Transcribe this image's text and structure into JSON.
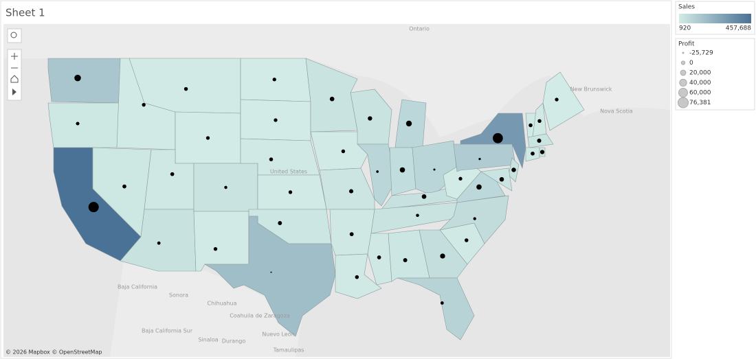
{
  "header": {
    "title": "Sheet 1"
  },
  "chart_data": {
    "type": "choropleth",
    "states": [
      {
        "sales": 138641,
        "profit": 33403
      },
      {
        "sales": 17431,
        "profit": -1190
      },
      {
        "sales": 457688,
        "profit": 76381
      },
      {
        "sales": 4382,
        "profit": 827
      },
      {
        "sales": 16729,
        "profit": 3317
      },
      {
        "sales": 5589,
        "profit": 1834
      },
      {
        "sales": 1603,
        "profit": 100
      },
      {
        "sales": 11220,
        "profit": 2547
      },
      {
        "sales": 35282,
        "profit": -3428
      },
      {
        "sales": 32108,
        "profit": -6528
      },
      {
        "sales": 4784,
        "profit": 1157
      },
      {
        "sales": 920,
        "profit": 230
      },
      {
        "sales": 1316,
        "profit": 394
      },
      {
        "sales": 7465,
        "profit": 2037
      },
      {
        "sales": 2914,
        "profit": 836
      },
      {
        "sales": 19683,
        "profit": 4854
      },
      {
        "sales": 170188,
        "profit": -25729
      },
      {
        "sales": 29863,
        "profit": 10823
      },
      {
        "sales": 4580,
        "profit": 1184
      },
      {
        "sales": 22205,
        "profit": 6436
      },
      {
        "sales": 11678,
        "profit": 4009
      },
      {
        "sales": 9217,
        "profit": 2196
      },
      {
        "sales": 32115,
        "profit": 8402
      },
      {
        "sales": 80166,
        "profit": -12608
      },
      {
        "sales": 76270,
        "profit": 24463
      },
      {
        "sales": 53555,
        "profit": 18383
      },
      {
        "sales": 78258,
        "profit": -16971
      },
      {
        "sales": 36592,
        "profit": 11200
      },
      {
        "sales": 30662,
        "profit": -5342
      },
      {
        "sales": 10771,
        "profit": 3172
      },
      {
        "sales": 19511,
        "profit": 5787
      },
      {
        "sales": 49096,
        "profit": 16250
      },
      {
        "sales": 89474,
        "profit": -3399
      },
      {
        "sales": 8482,
        "profit": 1769
      },
      {
        "sales": 55603,
        "profit": -7491
      },
      {
        "sales": 70637,
        "profit": 18598
      },
      {
        "sales": 1210,
        "profit": 186
      },
      {
        "sales": 116512,
        "profit": -15560
      },
      {
        "sales": 310876,
        "profit": 74039
      },
      {
        "sales": 35764,
        "profit": 9773
      },
      {
        "sales": 27451,
        "profit": 9977
      },
      {
        "sales": 8929,
        "profit": 2245
      },
      {
        "sales": 7293,
        "profit": 1707
      },
      {
        "sales": 1271,
        "profit": 454
      },
      {
        "sales": 28634,
        "profit": 6786
      },
      {
        "sales": 13384,
        "profit": 3511
      },
      {
        "sales": 22628,
        "profit": 7286
      }
    ],
    "color_legend": {
      "title": "Sales",
      "colors": [
        "#d2ebe6",
        "#4a7196"
      ],
      "lim": [
        920,
        {
          "value": 457688,
          "label": "457,688"
        }
      ]
    },
    "size_legend": {
      "title": "Profit",
      "color": "#c8c8c8",
      "ticks": [
        {
          "value": -25729,
          "label": "-25,729"
        },
        0,
        {
          "value": 20000,
          "label": "20,000"
        },
        {
          "value": 40000,
          "label": "40,000"
        },
        {
          "value": 60000,
          "label": "60,000"
        },
        {
          "value": 76381,
          "label": "76,381"
        }
      ]
    }
  },
  "map_labels": [
    "Ontario",
    "New Brunswick",
    "Nova Scotia",
    "United States",
    "Baja California",
    "Sonora",
    "Chihuahua",
    "Coahuila de Zaragoza",
    "Baja California Sur",
    "Sinaloa",
    "Durango",
    "Nuevo León",
    "Tamaulipas"
  ],
  "attribution": "© 2026 Mapbox © OpenStreetMap"
}
